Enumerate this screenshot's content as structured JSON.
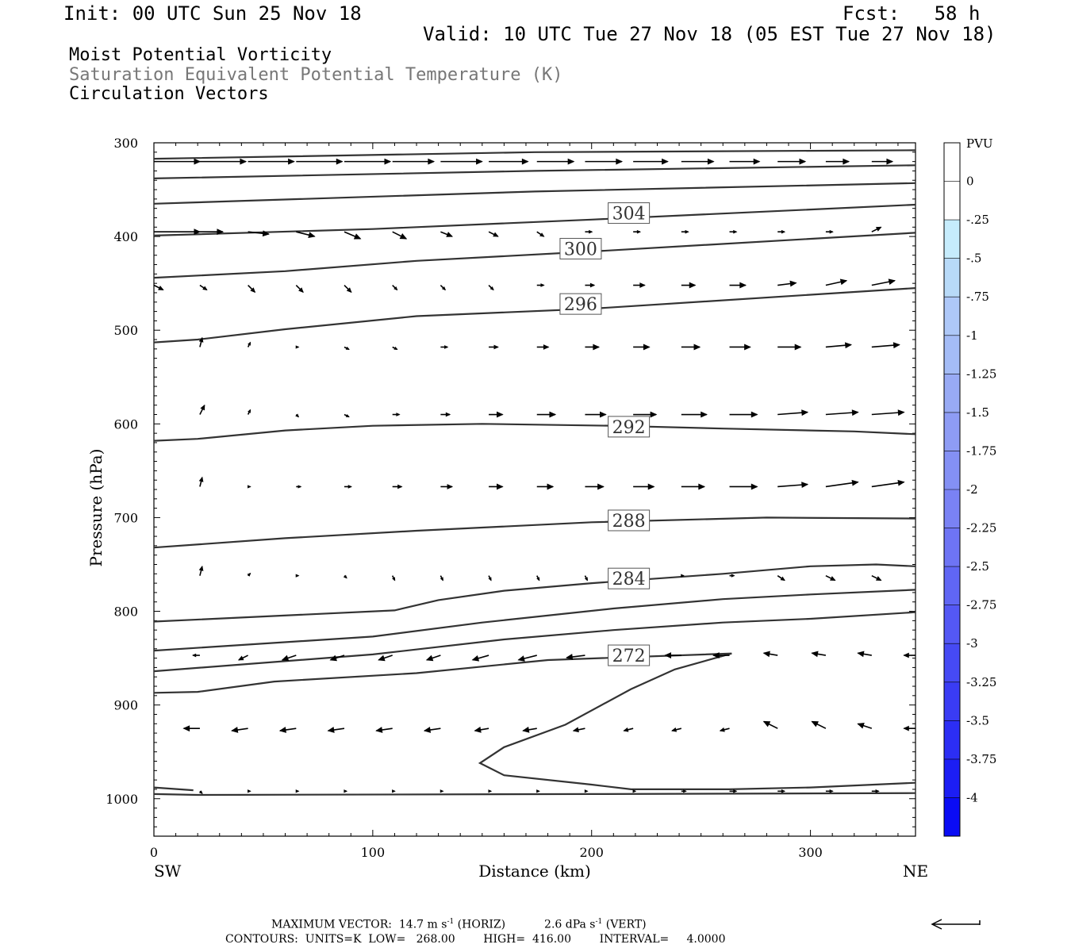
{
  "header": {
    "init": "Init: 00 UTC Sun 25 Nov 18",
    "fcst": "Fcst:   58 h",
    "valid": "Valid: 10 UTC Tue 27 Nov 18 (05 EST Tue 27 Nov 18)",
    "field1": "Moist Potential Vorticity",
    "field2": "Saturation Equivalent Potential Temperature (K)",
    "field3": "Circulation Vectors"
  },
  "footer": {
    "max_vector_label": "MAXIMUM VECTOR:",
    "max_vector_horiz": "14.7 m s",
    "horiz_exp": "-1",
    "horiz_tag": "(HORIZ)",
    "max_vector_vert": "2.6 dPa s",
    "vert_exp": "-1",
    "vert_tag": "(VERT)",
    "contours": "CONTOURS:  UNITS=K  LOW=   268.00        HIGH=  416.00        INTERVAL=     4.0000"
  },
  "colorbar": {
    "title": "PVU",
    "labels": [
      "0",
      "-.25",
      "-.5",
      "-.75",
      "-1",
      "-1.25",
      "-1.5",
      "-1.75",
      "-2",
      "-2.25",
      "-2.5",
      "-2.75",
      "-3",
      "-3.25",
      "-3.5",
      "-3.75",
      "-4"
    ],
    "colors": [
      "#ffffff",
      "#ffffff",
      "#c6ecfc",
      "#b8daf8",
      "#aec8f8",
      "#a4bcf6",
      "#98aaf4",
      "#8e9cf4",
      "#8490f4",
      "#7a82f4",
      "#6e74f4",
      "#6066f4",
      "#5458f4",
      "#464af4",
      "#3a3cf4",
      "#2c2ef4",
      "#1c1ef4",
      "#0a0cf4"
    ]
  },
  "chart_data": {
    "type": "line",
    "xlabel": "Distance (km)",
    "ylabel": "Pressure (hPa)",
    "x_left_label": "SW",
    "x_right_label": "NE",
    "xlim": [
      0,
      348
    ],
    "ylim": [
      1040,
      300
    ],
    "x_ticks": [
      0,
      100,
      200,
      300
    ],
    "y_ticks": [
      300,
      400,
      500,
      600,
      700,
      800,
      900,
      1000
    ],
    "contour_labels": [
      {
        "value": "304",
        "x": 217,
        "p": 375
      },
      {
        "value": "300",
        "x": 195,
        "p": 413
      },
      {
        "value": "296",
        "x": 195,
        "p": 472
      },
      {
        "value": "292",
        "x": 217,
        "p": 603
      },
      {
        "value": "288",
        "x": 217,
        "p": 703
      },
      {
        "value": "284",
        "x": 217,
        "p": 765
      },
      {
        "value": "272",
        "x": 217,
        "p": 847
      }
    ],
    "contours": [
      {
        "points": [
          [
            0,
            317
          ],
          [
            174,
            310
          ],
          [
            348,
            308
          ]
        ]
      },
      {
        "points": [
          [
            0,
            338
          ],
          [
            174,
            330
          ],
          [
            348,
            324
          ]
        ]
      },
      {
        "points": [
          [
            0,
            365
          ],
          [
            174,
            352
          ],
          [
            348,
            343
          ]
        ]
      },
      {
        "points": [
          [
            0,
            399
          ],
          [
            100,
            392
          ],
          [
            200,
            382
          ],
          [
            348,
            366
          ]
        ]
      },
      {
        "points": [
          [
            0,
            444
          ],
          [
            60,
            437
          ],
          [
            120,
            426
          ],
          [
            200,
            416
          ],
          [
            348,
            396
          ]
        ]
      },
      {
        "points": [
          [
            0,
            513
          ],
          [
            20,
            510
          ],
          [
            60,
            499
          ],
          [
            120,
            485
          ],
          [
            200,
            477
          ],
          [
            348,
            455
          ]
        ]
      },
      {
        "points": [
          [
            0,
            618
          ],
          [
            20,
            616
          ],
          [
            60,
            607
          ],
          [
            100,
            602
          ],
          [
            150,
            600
          ],
          [
            210,
            602
          ],
          [
            260,
            605
          ],
          [
            320,
            608
          ],
          [
            348,
            611
          ]
        ]
      },
      {
        "points": [
          [
            0,
            732
          ],
          [
            60,
            722
          ],
          [
            120,
            714
          ],
          [
            200,
            705
          ],
          [
            280,
            700
          ],
          [
            348,
            701
          ]
        ]
      },
      {
        "points": [
          [
            0,
            811
          ],
          [
            110,
            799
          ],
          [
            130,
            788
          ],
          [
            160,
            778
          ],
          [
            200,
            770
          ],
          [
            260,
            760
          ],
          [
            300,
            752
          ],
          [
            330,
            750
          ],
          [
            348,
            752
          ]
        ]
      },
      {
        "points": [
          [
            0,
            842
          ],
          [
            100,
            827
          ],
          [
            150,
            812
          ],
          [
            210,
            797
          ],
          [
            260,
            787
          ],
          [
            300,
            782
          ],
          [
            348,
            777
          ]
        ]
      },
      {
        "points": [
          [
            0,
            864
          ],
          [
            100,
            846
          ],
          [
            160,
            830
          ],
          [
            210,
            820
          ],
          [
            260,
            812
          ],
          [
            300,
            808
          ],
          [
            348,
            801
          ]
        ]
      },
      {
        "points": [
          [
            0,
            887
          ],
          [
            20,
            886
          ],
          [
            55,
            875
          ],
          [
            120,
            866
          ],
          [
            180,
            852
          ],
          [
            264,
            845
          ],
          [
            238,
            862
          ],
          [
            218,
            883
          ],
          [
            188,
            921
          ],
          [
            160,
            945
          ],
          [
            149,
            962
          ],
          [
            160,
            975
          ],
          [
            200,
            985
          ],
          [
            218,
            990
          ],
          [
            263,
            990
          ],
          [
            300,
            988
          ],
          [
            348,
            983
          ]
        ]
      },
      {
        "points": [
          [
            0,
            988
          ],
          [
            18,
            991
          ]
        ]
      },
      {
        "points": [
          [
            0,
            995
          ],
          [
            20,
            996
          ],
          [
            200,
            995
          ],
          [
            348,
            994
          ]
        ]
      }
    ],
    "vector_rows_p": [
      320,
      395,
      452,
      518,
      590,
      667,
      762,
      847,
      925,
      992
    ],
    "vector_cols_x": [
      0,
      21,
      43,
      65,
      87,
      109,
      131,
      153,
      175,
      197,
      219,
      241,
      263,
      285,
      307,
      328,
      348
    ],
    "vectors": [
      [
        [
          1.0,
          0
        ],
        [
          1.0,
          0
        ],
        [
          1.0,
          0
        ],
        [
          1.0,
          0
        ],
        [
          1.0,
          0
        ],
        [
          0.9,
          0
        ],
        [
          0.9,
          0
        ],
        [
          0.85,
          0
        ],
        [
          0.8,
          0
        ],
        [
          0.8,
          0
        ],
        [
          0.75,
          0
        ],
        [
          0.7,
          0
        ],
        [
          0.65,
          0
        ],
        [
          0.6,
          0
        ],
        [
          0.5,
          0
        ],
        [
          0.45,
          0
        ],
        [
          0,
          0
        ]
      ],
      [
        [
          1.0,
          0
        ],
        [
          0.5,
          0
        ],
        [
          0.45,
          0.05
        ],
        [
          0.4,
          0.1
        ],
        [
          0.35,
          0.15
        ],
        [
          0.3,
          0.15
        ],
        [
          0.25,
          0.1
        ],
        [
          0.2,
          0.1
        ],
        [
          0.15,
          0.1
        ],
        [
          0.15,
          0
        ],
        [
          0.15,
          0
        ],
        [
          0.15,
          0
        ],
        [
          0.15,
          0
        ],
        [
          0.15,
          0
        ],
        [
          0.15,
          0
        ],
        [
          0.2,
          -0.1
        ],
        [
          0,
          0
        ]
      ],
      [
        [
          0.2,
          0.1
        ],
        [
          0.15,
          0.1
        ],
        [
          0.15,
          0.15
        ],
        [
          0.15,
          0.15
        ],
        [
          0.15,
          0.15
        ],
        [
          0.1,
          0.1
        ],
        [
          0.1,
          0.1
        ],
        [
          0.1,
          0.1
        ],
        [
          0.15,
          0
        ],
        [
          0.2,
          0
        ],
        [
          0.25,
          0
        ],
        [
          0.3,
          0
        ],
        [
          0.35,
          0
        ],
        [
          0.4,
          -0.05
        ],
        [
          0.45,
          -0.1
        ],
        [
          0.5,
          -0.1
        ],
        [
          0,
          0
        ]
      ],
      [
        [
          0,
          0
        ],
        [
          0.05,
          -0.2
        ],
        [
          0.05,
          -0.1
        ],
        [
          0.05,
          0
        ],
        [
          0.1,
          0.05
        ],
        [
          0.1,
          0.05
        ],
        [
          0.15,
          0
        ],
        [
          0.2,
          0
        ],
        [
          0.25,
          0
        ],
        [
          0.3,
          0
        ],
        [
          0.35,
          0
        ],
        [
          0.4,
          0
        ],
        [
          0.45,
          0
        ],
        [
          0.5,
          0
        ],
        [
          0.55,
          -0.05
        ],
        [
          0.6,
          -0.05
        ],
        [
          0,
          0
        ]
      ],
      [
        [
          0,
          0
        ],
        [
          0.1,
          -0.2
        ],
        [
          0.05,
          -0.1
        ],
        [
          0.05,
          0.05
        ],
        [
          0.1,
          0.05
        ],
        [
          0.15,
          0
        ],
        [
          0.2,
          0
        ],
        [
          0.3,
          0
        ],
        [
          0.4,
          0
        ],
        [
          0.45,
          0
        ],
        [
          0.5,
          0
        ],
        [
          0.55,
          0
        ],
        [
          0.6,
          0
        ],
        [
          0.65,
          -0.05
        ],
        [
          0.7,
          -0.05
        ],
        [
          0.7,
          -0.05
        ],
        [
          0,
          0
        ]
      ],
      [
        [
          0,
          0
        ],
        [
          0.05,
          -0.2
        ],
        [
          0.05,
          0
        ],
        [
          0.1,
          0
        ],
        [
          0.15,
          0
        ],
        [
          0.2,
          0
        ],
        [
          0.25,
          0
        ],
        [
          0.3,
          0
        ],
        [
          0.35,
          0
        ],
        [
          0.4,
          0
        ],
        [
          0.45,
          0
        ],
        [
          0.5,
          0
        ],
        [
          0.6,
          0
        ],
        [
          0.65,
          -0.05
        ],
        [
          0.7,
          -0.1
        ],
        [
          0.7,
          -0.1
        ],
        [
          0,
          0
        ]
      ],
      [
        [
          0,
          0
        ],
        [
          0.05,
          -0.2
        ],
        [
          0.05,
          -0.05
        ],
        [
          0.05,
          0
        ],
        [
          0.05,
          0.05
        ],
        [
          0.05,
          0.1
        ],
        [
          0.05,
          0.1
        ],
        [
          0.05,
          0.1
        ],
        [
          0.05,
          0.1
        ],
        [
          0.05,
          0.1
        ],
        [
          0.05,
          0.05
        ],
        [
          0.05,
          0
        ],
        [
          0.1,
          0
        ],
        [
          0.15,
          0.1
        ],
        [
          0.2,
          0.1
        ],
        [
          0.2,
          0.1
        ],
        [
          0,
          0
        ]
      ],
      [
        [
          0,
          0
        ],
        [
          -0.15,
          0
        ],
        [
          -0.2,
          0.1
        ],
        [
          -0.3,
          0.1
        ],
        [
          -0.3,
          0.1
        ],
        [
          -0.3,
          0.1
        ],
        [
          -0.3,
          0.1
        ],
        [
          -0.35,
          0.1
        ],
        [
          -0.4,
          0.1
        ],
        [
          -0.4,
          0.05
        ],
        [
          -0.35,
          0
        ],
        [
          -0.35,
          0
        ],
        [
          -0.35,
          0
        ],
        [
          -0.3,
          -0.05
        ],
        [
          -0.3,
          -0.05
        ],
        [
          -0.3,
          -0.05
        ],
        [
          -0.25,
          0
        ]
      ],
      [
        [
          0,
          0
        ],
        [
          -0.35,
          0
        ],
        [
          -0.35,
          0.05
        ],
        [
          -0.35,
          0.05
        ],
        [
          -0.35,
          0.05
        ],
        [
          -0.35,
          0.05
        ],
        [
          -0.35,
          0.05
        ],
        [
          -0.3,
          0.05
        ],
        [
          -0.3,
          0.05
        ],
        [
          -0.25,
          0.05
        ],
        [
          -0.2,
          0.05
        ],
        [
          -0.2,
          0.05
        ],
        [
          -0.2,
          0.05
        ],
        [
          -0.3,
          -0.15
        ],
        [
          -0.3,
          -0.15
        ],
        [
          -0.3,
          -0.1
        ],
        [
          -0.25,
          0
        ]
      ],
      [
        [
          0,
          0
        ],
        [
          0.05,
          0.05
        ],
        [
          0.05,
          0
        ],
        [
          0.05,
          0
        ],
        [
          0.05,
          0
        ],
        [
          0.05,
          0
        ],
        [
          0.05,
          0
        ],
        [
          0.05,
          0
        ],
        [
          0.05,
          0
        ],
        [
          0.05,
          0
        ],
        [
          0.05,
          0
        ],
        [
          0.1,
          0
        ],
        [
          0.15,
          0
        ],
        [
          0.15,
          0
        ],
        [
          0.15,
          0
        ],
        [
          0.15,
          0
        ],
        [
          0,
          0
        ]
      ]
    ]
  }
}
